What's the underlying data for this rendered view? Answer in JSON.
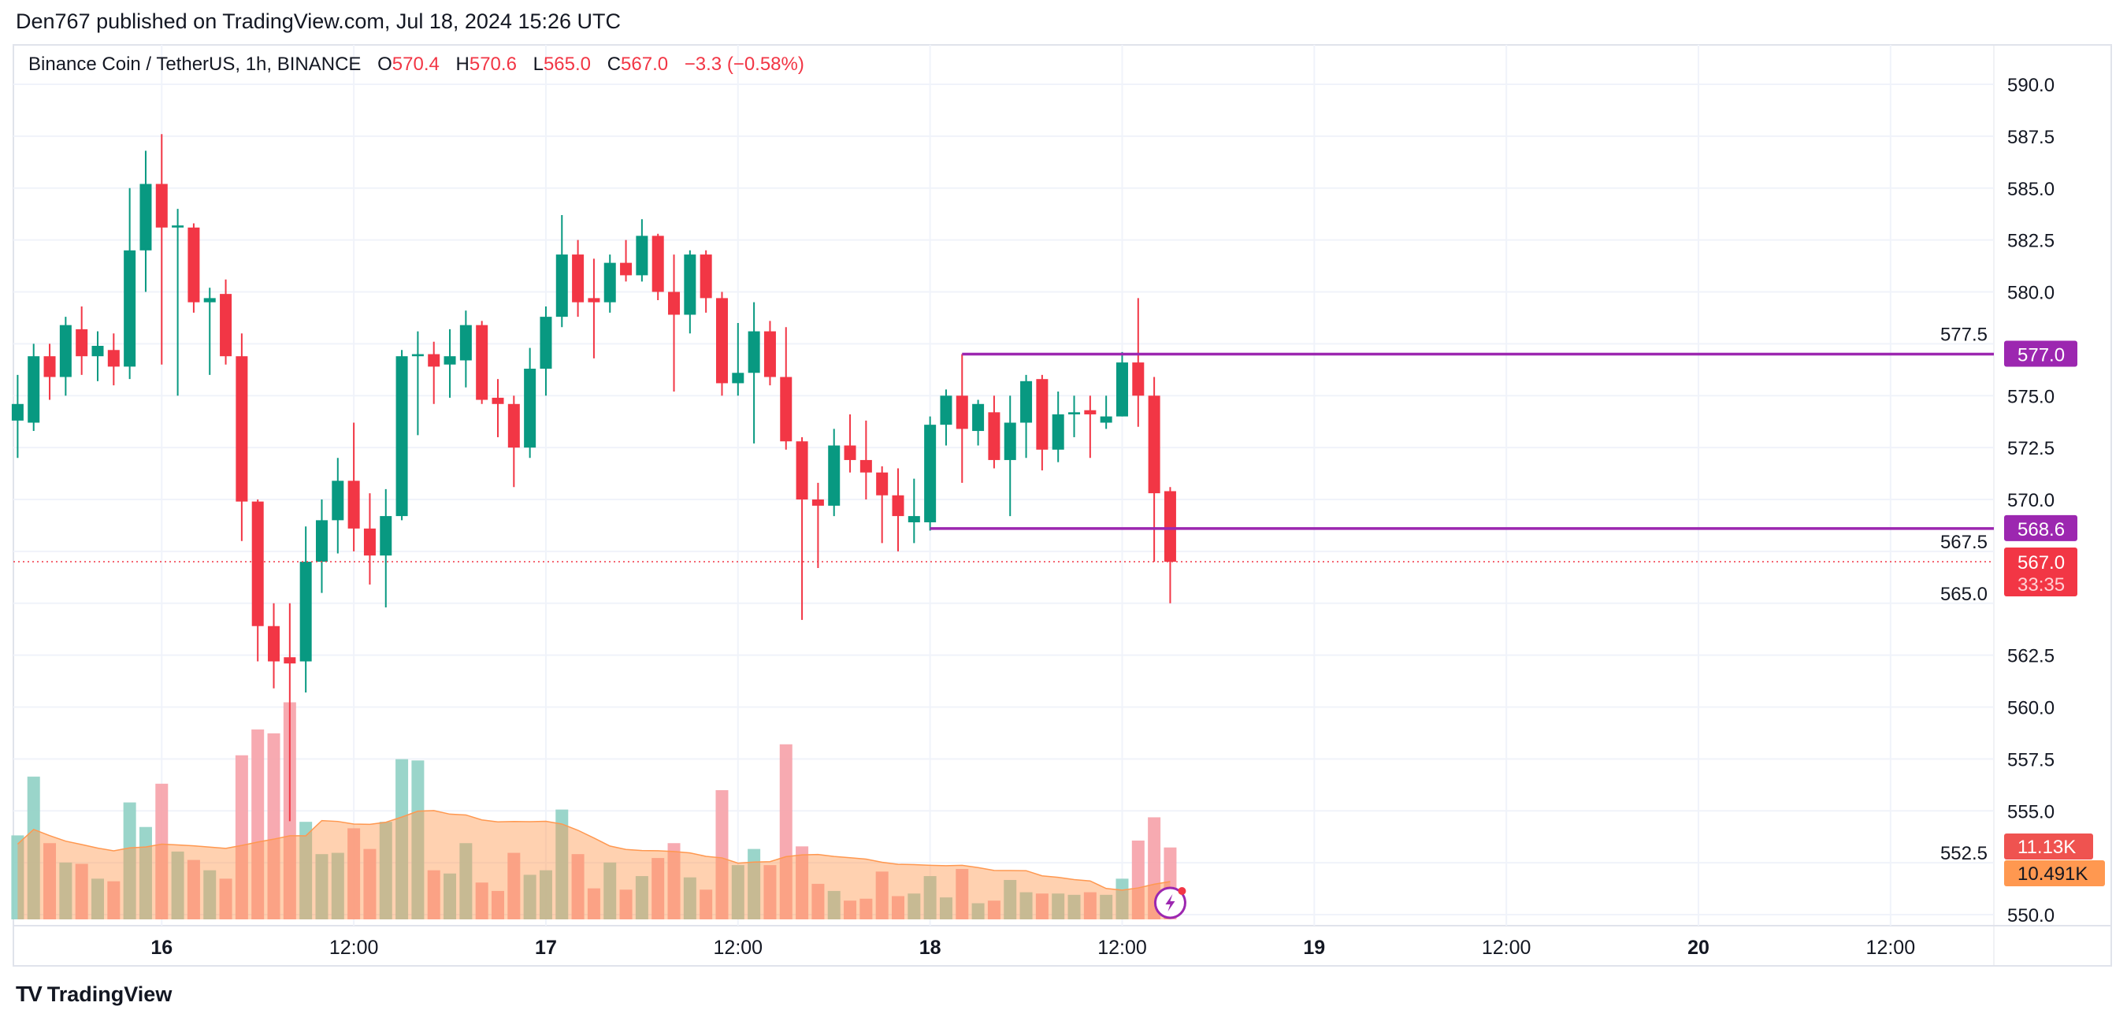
{
  "publisher_line": "Den767 published on TradingView.com, Jul 18, 2024 15:26 UTC",
  "legend": {
    "symbol": "Binance Coin / TetherUS, 1h, BINANCE",
    "o_label": "O",
    "o": "570.4",
    "h_label": "H",
    "h": "570.6",
    "l_label": "L",
    "l": "565.0",
    "c_label": "C",
    "c": "567.0",
    "change": "−3.3 (−0.58%)"
  },
  "footer": {
    "logo_text": "TradingView",
    "logo_mark": "TV"
  },
  "colors": {
    "up": "#089981",
    "down": "#f23645",
    "up_vol": "#8fd0c4",
    "down_vol": "#f6a1a8",
    "vol_ma": "#ff9850",
    "level": "#9c27b0",
    "grid": "#f0f3fa"
  },
  "chart_data": {
    "type": "candlestick",
    "ylim": [
      550,
      590
    ],
    "grid": true,
    "price_ticks": [
      "550.0",
      "552.5",
      "555.0",
      "557.5",
      "560.0",
      "562.5",
      "565.0",
      "567.5",
      "570.0",
      "572.5",
      "575.0",
      "577.5",
      "580.0",
      "582.5",
      "585.0",
      "587.5",
      "590.0"
    ],
    "time_ticks": [
      {
        "label": "16",
        "t": "2024-07-16T00:00"
      },
      {
        "label": "12:00",
        "t": "2024-07-16T12:00"
      },
      {
        "label": "17",
        "t": "2024-07-17T00:00"
      },
      {
        "label": "12:00",
        "t": "2024-07-17T12:00"
      },
      {
        "label": "18",
        "t": "2024-07-18T00:00"
      },
      {
        "label": "12:00",
        "t": "2024-07-18T12:00"
      },
      {
        "label": "19",
        "t": "2024-07-19T00:00"
      },
      {
        "label": "12:00",
        "t": "2024-07-19T12:00"
      },
      {
        "label": "20",
        "t": "2024-07-20T00:00"
      },
      {
        "label": "12:00",
        "t": "2024-07-20T12:00"
      }
    ],
    "first_candle": "2024-07-15T15:00",
    "candles_ohlcv_k": [
      [
        573.8,
        576,
        572,
        574.6,
        13.0
      ],
      [
        573.7,
        577.5,
        573.3,
        576.9,
        22.1
      ],
      [
        576.9,
        577.5,
        574.8,
        575.9,
        11.8
      ],
      [
        575.9,
        578.8,
        575,
        578.4,
        8.8
      ],
      [
        578.2,
        579.3,
        576,
        576.9,
        8.6
      ],
      [
        576.9,
        578.1,
        575.7,
        577.4,
        6.3
      ],
      [
        577.2,
        578,
        575.5,
        576.4,
        5.9
      ],
      [
        576.4,
        585,
        575.8,
        582.0,
        18.1
      ],
      [
        582.0,
        586.8,
        580,
        585.2,
        14.3
      ],
      [
        585.2,
        587.6,
        576.5,
        583.1,
        21.0
      ],
      [
        583.1,
        584,
        575,
        583.2,
        10.5
      ],
      [
        583.1,
        583.3,
        579,
        579.5,
        9.2
      ],
      [
        579.5,
        580.2,
        576,
        579.7,
        7.6
      ],
      [
        579.9,
        580.6,
        576.5,
        576.9,
        6.3
      ],
      [
        576.9,
        578,
        568,
        569.9,
        25.4
      ],
      [
        569.9,
        570,
        562.2,
        563.9,
        29.4
      ],
      [
        563.9,
        565,
        560.9,
        562.2,
        28.8
      ],
      [
        562.4,
        565,
        554.5,
        562.1,
        33.6
      ],
      [
        562.2,
        568.7,
        560.7,
        567.0,
        15.1
      ],
      [
        567.0,
        570,
        565.5,
        569.0,
        10.1
      ],
      [
        569.0,
        572,
        567.4,
        570.9,
        10.3
      ],
      [
        570.9,
        573.7,
        567.5,
        568.6,
        14.1
      ],
      [
        568.6,
        570.3,
        565.9,
        567.3,
        10.9
      ],
      [
        567.3,
        570.5,
        564.8,
        569.2,
        15.1
      ],
      [
        569.2,
        577.2,
        569,
        576.9,
        24.8
      ],
      [
        576.9,
        578.1,
        573.1,
        577.0,
        24.6
      ],
      [
        577.0,
        577.6,
        574.6,
        576.4,
        7.6
      ],
      [
        576.5,
        578.2,
        574.9,
        576.9,
        7.1
      ],
      [
        576.7,
        579.1,
        575.4,
        578.4,
        11.8
      ],
      [
        578.4,
        578.6,
        574.6,
        574.8,
        5.7
      ],
      [
        574.9,
        575.8,
        573,
        574.6,
        4.4
      ],
      [
        574.6,
        575,
        570.6,
        572.5,
        10.3
      ],
      [
        572.5,
        577.3,
        572,
        576.3,
        6.9
      ],
      [
        576.3,
        579.3,
        575,
        578.8,
        7.6
      ],
      [
        578.8,
        583.7,
        578.3,
        581.8,
        17.0
      ],
      [
        581.8,
        582.5,
        578.8,
        579.5,
        10.1
      ],
      [
        579.7,
        581.6,
        576.8,
        579.5,
        4.8
      ],
      [
        579.5,
        581.8,
        579,
        581.4,
        8.8
      ],
      [
        581.4,
        582.5,
        580.5,
        580.8,
        4.6
      ],
      [
        580.8,
        583.5,
        580.5,
        582.7,
        6.7
      ],
      [
        582.7,
        582.8,
        579.6,
        580.0,
        9.5
      ],
      [
        580.0,
        581.8,
        575.2,
        578.9,
        11.8
      ],
      [
        578.9,
        582,
        578,
        581.8,
        6.5
      ],
      [
        581.8,
        582,
        579,
        579.7,
        4.6
      ],
      [
        579.7,
        580,
        575,
        575.6,
        20.0
      ],
      [
        575.6,
        578.5,
        575,
        576.1,
        8.4
      ],
      [
        576.1,
        579.5,
        572.7,
        578.1,
        10.9
      ],
      [
        578.1,
        578.6,
        575.5,
        575.9,
        8.4
      ],
      [
        575.9,
        578.3,
        572.4,
        572.8,
        27.1
      ],
      [
        572.8,
        573,
        564.2,
        570.0,
        11.3
      ],
      [
        570.0,
        570.8,
        566.7,
        569.7,
        5.5
      ],
      [
        569.7,
        573.4,
        569.2,
        572.6,
        4.4
      ],
      [
        572.6,
        574.1,
        571.3,
        571.9,
        2.9
      ],
      [
        571.9,
        573.8,
        570,
        571.3,
        3.2
      ],
      [
        571.3,
        571.6,
        567.9,
        570.2,
        7.4
      ],
      [
        570.2,
        571.5,
        567.5,
        569.2,
        3.6
      ],
      [
        568.9,
        571,
        567.9,
        569.2,
        4.0
      ],
      [
        568.9,
        574,
        568.5,
        573.6,
        6.7
      ],
      [
        573.6,
        575.3,
        572.6,
        575.0,
        3.4
      ],
      [
        575.0,
        577,
        570.8,
        573.4,
        7.8
      ],
      [
        573.3,
        574.8,
        572.6,
        574.6,
        2.5
      ],
      [
        574.2,
        575,
        571.5,
        571.9,
        2.9
      ],
      [
        571.9,
        575,
        569.2,
        573.7,
        6.1
      ],
      [
        573.7,
        576,
        572,
        575.7,
        4.2
      ],
      [
        575.8,
        576,
        571.4,
        572.4,
        4.0
      ],
      [
        572.4,
        575.2,
        571.8,
        574.1,
        4.0
      ],
      [
        574.1,
        575,
        573,
        574.2,
        3.8
      ],
      [
        574.3,
        575,
        572,
        574.1,
        4.2
      ],
      [
        573.7,
        575,
        573.4,
        574.0,
        3.8
      ],
      [
        574.0,
        577.1,
        574,
        576.6,
        6.3
      ],
      [
        576.6,
        579.7,
        573.5,
        575.0,
        12.2
      ],
      [
        575.0,
        575.9,
        567,
        570.3,
        15.8
      ],
      [
        570.4,
        570.6,
        565.0,
        567.0,
        11.13
      ]
    ],
    "levels": [
      {
        "price": 577.0,
        "label": "577.0",
        "from": "2024-07-18T02:00"
      },
      {
        "price": 568.6,
        "label": "568.6",
        "from": "2024-07-18T00:00"
      }
    ],
    "last_price": {
      "price": 567.0,
      "label": "567.0",
      "countdown": "33:35"
    },
    "volume_label": "11.13K",
    "volume_ma_label": "10.491K"
  }
}
